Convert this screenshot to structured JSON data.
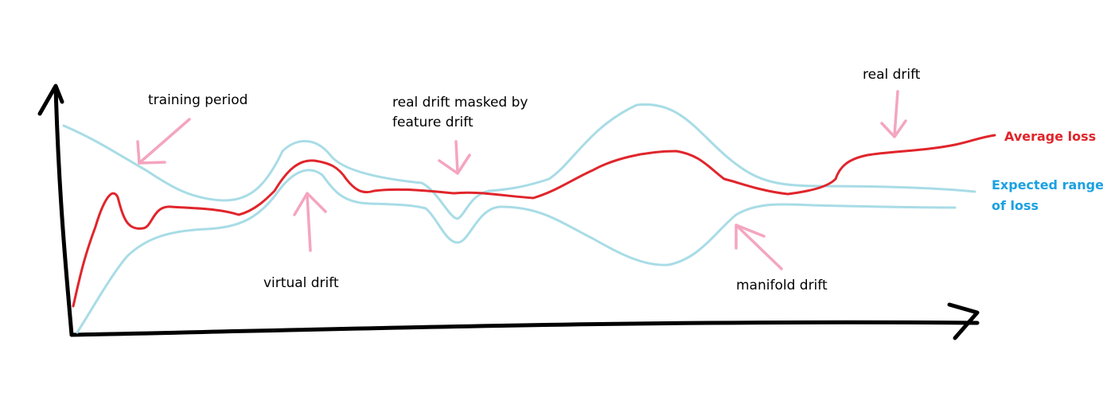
{
  "annotations": {
    "training_period": "training period",
    "real_drift_masked_line1": "real drift masked by",
    "real_drift_masked_line2": "feature drift",
    "real_drift": "real drift",
    "virtual_drift": "virtual drift",
    "manifold_drift": "manifold drift"
  },
  "legend": {
    "average_loss": "Average loss",
    "expected_range_line1": "Expected range",
    "expected_range_line2": "of loss"
  },
  "colors": {
    "axes": "#000000",
    "average_loss": "#e0252b",
    "expected_range": "#a8dce6",
    "arrows": "#f4a5bf",
    "average_loss_label": "#e0252b",
    "expected_range_label": "#1ba1e2"
  }
}
